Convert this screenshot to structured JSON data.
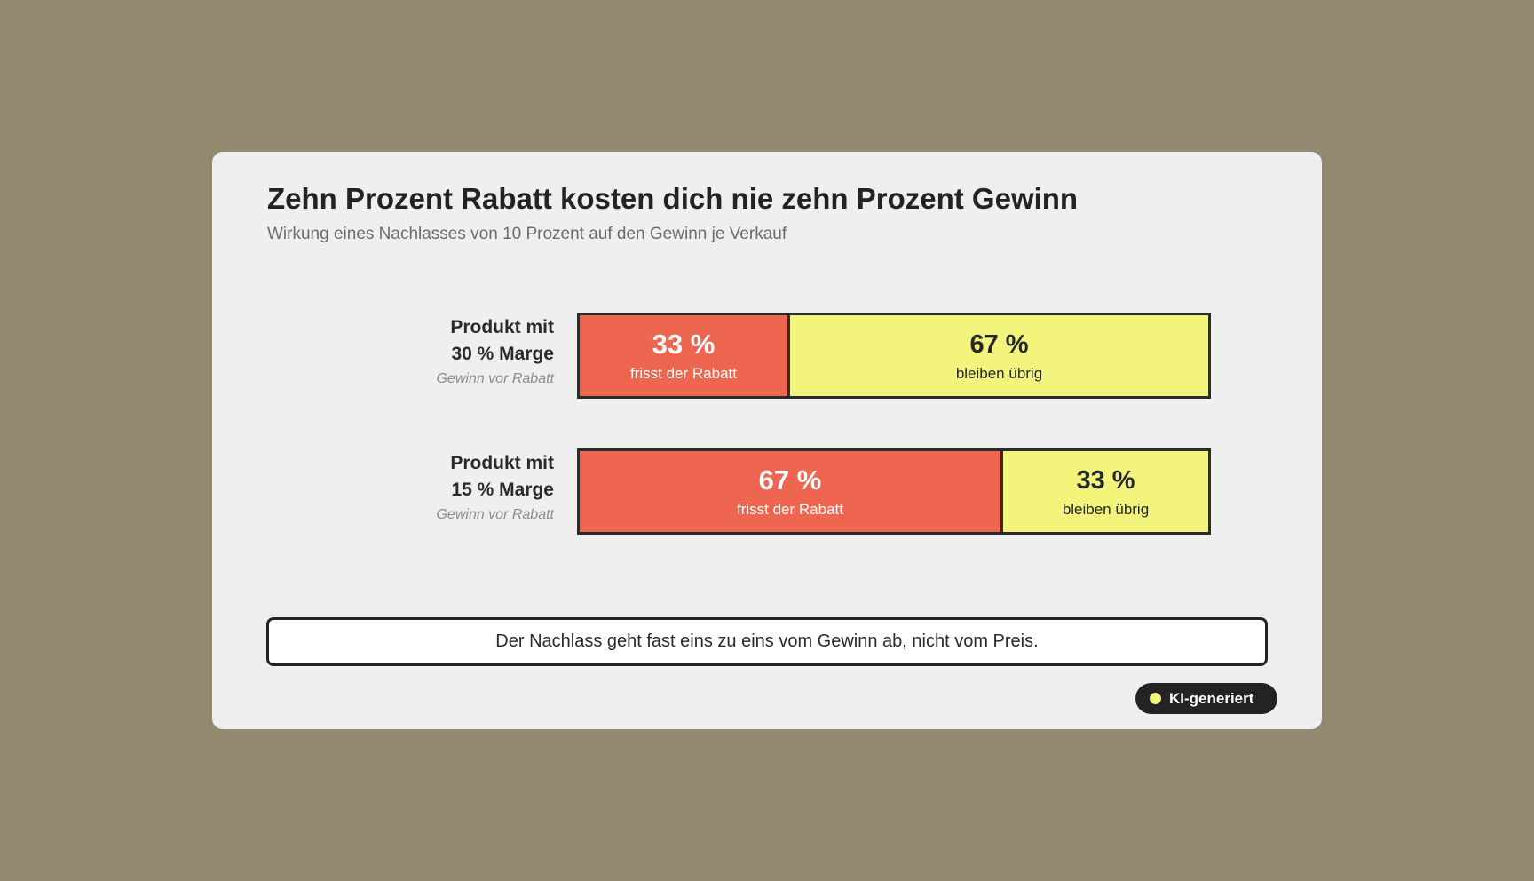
{
  "title": "Zehn Prozent Rabatt kosten dich nie zehn Prozent Gewinn",
  "subtitle": "Wirkung eines Nachlasses von 10 Prozent auf den Gewinn je Verkauf",
  "note": "Der Nachlass geht fast eins zu eins vom Gewinn ab, nicht vom Preis.",
  "badge": {
    "label": "KI-generiert"
  },
  "colors": {
    "eaten": "#ef6650",
    "remaining": "#f2f47c",
    "border": "#2b2b2b",
    "background": "#948971",
    "card": "#efefef"
  },
  "chart_data": {
    "type": "bar",
    "orientation": "horizontal",
    "stacked": true,
    "percent_suffix": " %",
    "categories": [
      {
        "line1": "Produkt mit",
        "line2": "30 % Marge",
        "sublabel": "Gewinn vor Rabatt"
      },
      {
        "line1": "Produkt mit",
        "line2": "15 % Marge",
        "sublabel": "Gewinn vor Rabatt"
      }
    ],
    "series": [
      {
        "name": "frisst der Rabatt",
        "values": [
          33,
          67
        ]
      },
      {
        "name": "bleiben übrig",
        "values": [
          67,
          33
        ]
      }
    ],
    "xlim": [
      0,
      100
    ]
  }
}
